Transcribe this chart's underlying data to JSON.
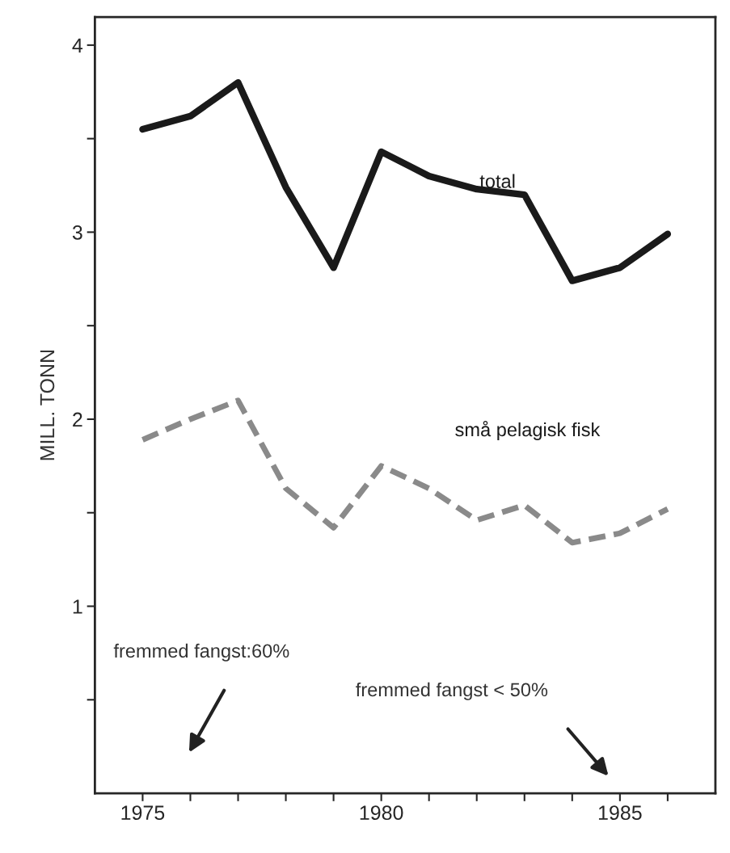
{
  "chart_data": {
    "type": "line",
    "ylabel": "MILL. TONN",
    "x": [
      1975,
      1976,
      1977,
      1978,
      1979,
      1980,
      1981,
      1982,
      1983,
      1984,
      1985,
      1986
    ],
    "series": [
      {
        "name": "total",
        "color": "#1a1a1a",
        "line_style": "solid",
        "values": [
          3.55,
          3.62,
          3.8,
          3.24,
          2.81,
          3.43,
          3.3,
          3.23,
          3.2,
          2.74,
          2.81,
          2.99
        ]
      },
      {
        "name": "små pelagisk fisk",
        "color": "#8a8a8a",
        "line_style": "dashed",
        "values": [
          1.89,
          2.0,
          2.1,
          1.63,
          1.42,
          1.75,
          1.63,
          1.46,
          1.54,
          1.34,
          1.39,
          1.52
        ]
      }
    ],
    "xlim": [
      1974,
      1987
    ],
    "ylim": [
      0,
      4.15
    ],
    "xticks": [
      1975,
      {
        "value": 1976,
        "label": null
      },
      {
        "value": 1977,
        "label": null
      },
      {
        "value": 1978,
        "label": null
      },
      {
        "value": 1979,
        "label": null
      },
      1980,
      {
        "value": 1981,
        "label": null
      },
      {
        "value": 1982,
        "label": null
      },
      {
        "value": 1983,
        "label": null
      },
      {
        "value": 1984,
        "label": null
      },
      1985,
      {
        "value": 1986,
        "label": null
      }
    ],
    "yticks": [
      {
        "value": 0.5,
        "label": null
      },
      1,
      {
        "value": 1.5,
        "label": null
      },
      2,
      {
        "value": 2.5,
        "label": null
      },
      3,
      {
        "value": 3.5,
        "label": null
      },
      4
    ],
    "annotations": [
      "fremmed fangst:60%",
      "fremmed fangst < 50%"
    ],
    "grid": false,
    "legend": false,
    "marker": "none"
  }
}
